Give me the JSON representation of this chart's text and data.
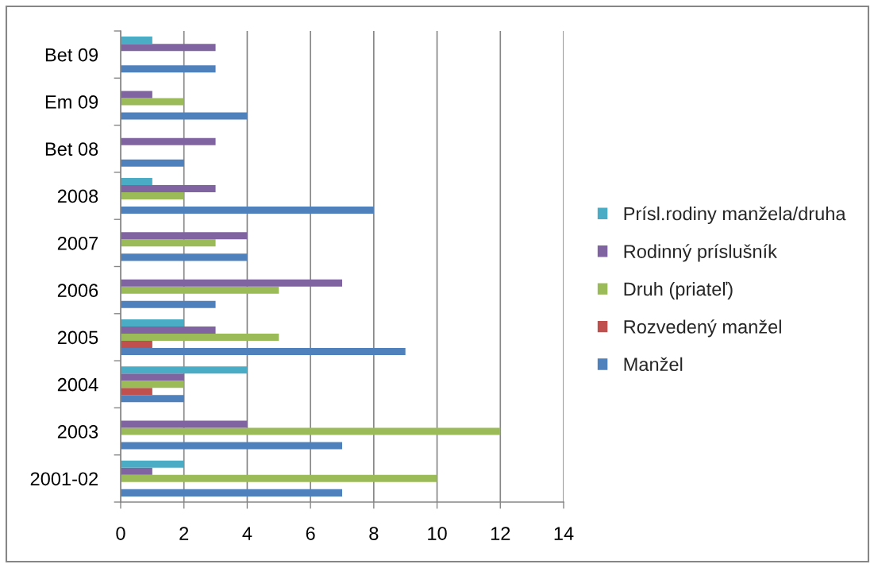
{
  "chart_data": {
    "type": "bar",
    "orientation": "horizontal",
    "categories": [
      "Bet 09",
      "Em 09",
      "Bet 08",
      "2008",
      "2007",
      "2006",
      "2005",
      "2004",
      "2003",
      "2001-02"
    ],
    "series": [
      {
        "name": "Manžel",
        "color": "#4f81bd",
        "values": [
          3,
          4,
          2,
          8,
          4,
          3,
          9,
          2,
          7,
          7
        ]
      },
      {
        "name": "Rozvedený manžel",
        "color": "#c0504d",
        "values": [
          null,
          null,
          null,
          null,
          null,
          null,
          1,
          1,
          null,
          null
        ]
      },
      {
        "name": "Druh (priateľ)",
        "color": "#9bbb59",
        "values": [
          null,
          2,
          null,
          2,
          3,
          5,
          5,
          2,
          12,
          10
        ]
      },
      {
        "name": "Rodinný príslušník",
        "color": "#8064a2",
        "values": [
          3,
          1,
          3,
          3,
          4,
          7,
          3,
          2,
          4,
          1
        ]
      },
      {
        "name": "Prísl.rodiny manžela/druha",
        "color": "#4bacc6",
        "values": [
          1,
          null,
          null,
          1,
          null,
          null,
          2,
          4,
          null,
          2
        ]
      }
    ],
    "xlim": [
      0,
      14
    ],
    "xticks": [
      0,
      2,
      4,
      6,
      8,
      10,
      12,
      14
    ],
    "grid": "x",
    "legend": "right"
  }
}
